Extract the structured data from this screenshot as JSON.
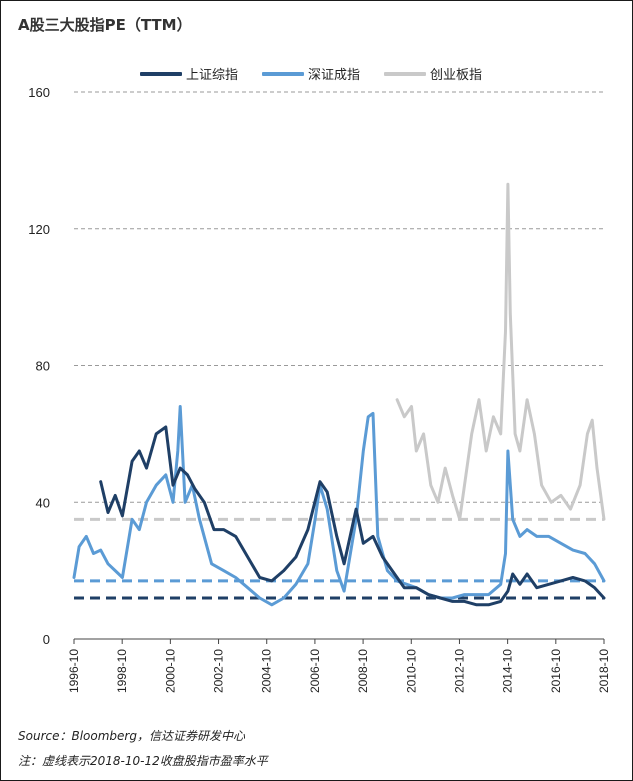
{
  "title": "A股三大股指PE（TTM）",
  "footer": {
    "source": "Source：Bloomberg，信达证券研发中心",
    "note": "注：虚线表示2018-10-12收盘股指市盈率水平"
  },
  "chart_data": {
    "type": "line",
    "title": "A股三大股指PE（TTM）",
    "xlabel": "",
    "ylabel": "",
    "ylim": [
      0,
      160
    ],
    "yticks": [
      0,
      40,
      80,
      120,
      160
    ],
    "xlim": [
      1996.79,
      2018.79
    ],
    "xticks": [
      {
        "x": 1996.79,
        "label": "1996-10"
      },
      {
        "x": 1998.79,
        "label": "1998-10"
      },
      {
        "x": 2000.79,
        "label": "2000-10"
      },
      {
        "x": 2002.79,
        "label": "2002-10"
      },
      {
        "x": 2004.79,
        "label": "2004-10"
      },
      {
        "x": 2006.79,
        "label": "2006-10"
      },
      {
        "x": 2008.79,
        "label": "2008-10"
      },
      {
        "x": 2010.79,
        "label": "2010-10"
      },
      {
        "x": 2012.79,
        "label": "2012-10"
      },
      {
        "x": 2014.79,
        "label": "2014-10"
      },
      {
        "x": 2016.79,
        "label": "2016-10"
      },
      {
        "x": 2018.79,
        "label": "2018-10"
      }
    ],
    "grid": "horizontal-dashed",
    "legend_position": "top",
    "series": [
      {
        "name": "上证综指",
        "color": "#1f3f66",
        "x": [
          1997.9,
          1998.2,
          1998.5,
          1998.8,
          1999.2,
          1999.5,
          1999.8,
          2000.2,
          2000.6,
          2000.9,
          2001.2,
          2001.5,
          2001.8,
          2002.2,
          2002.6,
          2003.0,
          2003.5,
          2004.0,
          2004.5,
          2005.0,
          2005.5,
          2006.0,
          2006.5,
          2007.0,
          2007.3,
          2007.7,
          2008.0,
          2008.5,
          2008.8,
          2009.2,
          2009.6,
          2010.0,
          2010.5,
          2011.0,
          2011.5,
          2012.0,
          2012.5,
          2013.0,
          2013.5,
          2014.0,
          2014.5,
          2014.8,
          2015.0,
          2015.3,
          2015.6,
          2016.0,
          2016.5,
          2017.0,
          2017.5,
          2018.0,
          2018.4,
          2018.79
        ],
        "values": [
          46,
          37,
          42,
          36,
          52,
          55,
          50,
          60,
          62,
          45,
          50,
          48,
          44,
          40,
          32,
          32,
          30,
          24,
          18,
          17,
          20,
          24,
          32,
          46,
          43,
          30,
          22,
          38,
          28,
          30,
          24,
          20,
          15,
          15,
          13,
          12,
          11,
          11,
          10,
          10,
          11,
          14,
          19,
          16,
          19,
          15,
          16,
          17,
          18,
          17,
          15,
          12
        ]
      },
      {
        "name": "深证成指",
        "color": "#5b9bd5",
        "x": [
          1996.79,
          1997.0,
          1997.3,
          1997.6,
          1997.9,
          1998.2,
          1998.5,
          1998.8,
          1999.2,
          1999.5,
          1999.8,
          2000.2,
          2000.6,
          2000.9,
          2001.1,
          2001.2,
          2001.4,
          2001.7,
          2002.0,
          2002.5,
          2003.0,
          2003.5,
          2004.0,
          2004.5,
          2005.0,
          2005.5,
          2006.0,
          2006.5,
          2006.8,
          2007.0,
          2007.3,
          2007.7,
          2008.0,
          2008.5,
          2008.8,
          2009.0,
          2009.2,
          2009.4,
          2009.8,
          2010.2,
          2010.6,
          2011.0,
          2011.5,
          2012.0,
          2012.5,
          2013.0,
          2013.5,
          2014.0,
          2014.5,
          2014.7,
          2014.8,
          2015.0,
          2015.3,
          2015.6,
          2016.0,
          2016.5,
          2017.0,
          2017.5,
          2018.0,
          2018.4,
          2018.79
        ],
        "values": [
          18,
          27,
          30,
          25,
          26,
          22,
          20,
          18,
          35,
          32,
          40,
          45,
          48,
          40,
          55,
          68,
          40,
          45,
          35,
          22,
          20,
          18,
          15,
          12,
          10,
          12,
          16,
          22,
          35,
          45,
          38,
          20,
          14,
          35,
          55,
          65,
          66,
          30,
          20,
          17,
          16,
          15,
          13,
          12,
          12,
          13,
          13,
          13,
          16,
          25,
          55,
          35,
          30,
          32,
          30,
          30,
          28,
          26,
          25,
          22,
          17
        ]
      },
      {
        "name": "创业板指",
        "color": "#c9c9c9",
        "x": [
          2010.2,
          2010.5,
          2010.8,
          2011.0,
          2011.3,
          2011.6,
          2011.9,
          2012.2,
          2012.5,
          2012.8,
          2013.0,
          2013.3,
          2013.6,
          2013.9,
          2014.2,
          2014.5,
          2014.7,
          2014.8,
          2014.9,
          2015.1,
          2015.3,
          2015.6,
          2015.9,
          2016.2,
          2016.6,
          2017.0,
          2017.4,
          2017.8,
          2018.1,
          2018.3,
          2018.5,
          2018.79
        ],
        "values": [
          70,
          65,
          68,
          55,
          60,
          45,
          40,
          50,
          42,
          35,
          45,
          60,
          70,
          55,
          65,
          60,
          90,
          133,
          95,
          60,
          55,
          70,
          60,
          45,
          40,
          42,
          38,
          45,
          60,
          64,
          50,
          35
        ]
      }
    ],
    "reference_lines": [
      {
        "series": "上证综指",
        "value": 12,
        "color": "#1f3f66"
      },
      {
        "series": "深证成指",
        "value": 17,
        "color": "#5b9bd5"
      },
      {
        "series": "创业板指",
        "value": 35,
        "color": "#c9c9c9"
      }
    ]
  }
}
